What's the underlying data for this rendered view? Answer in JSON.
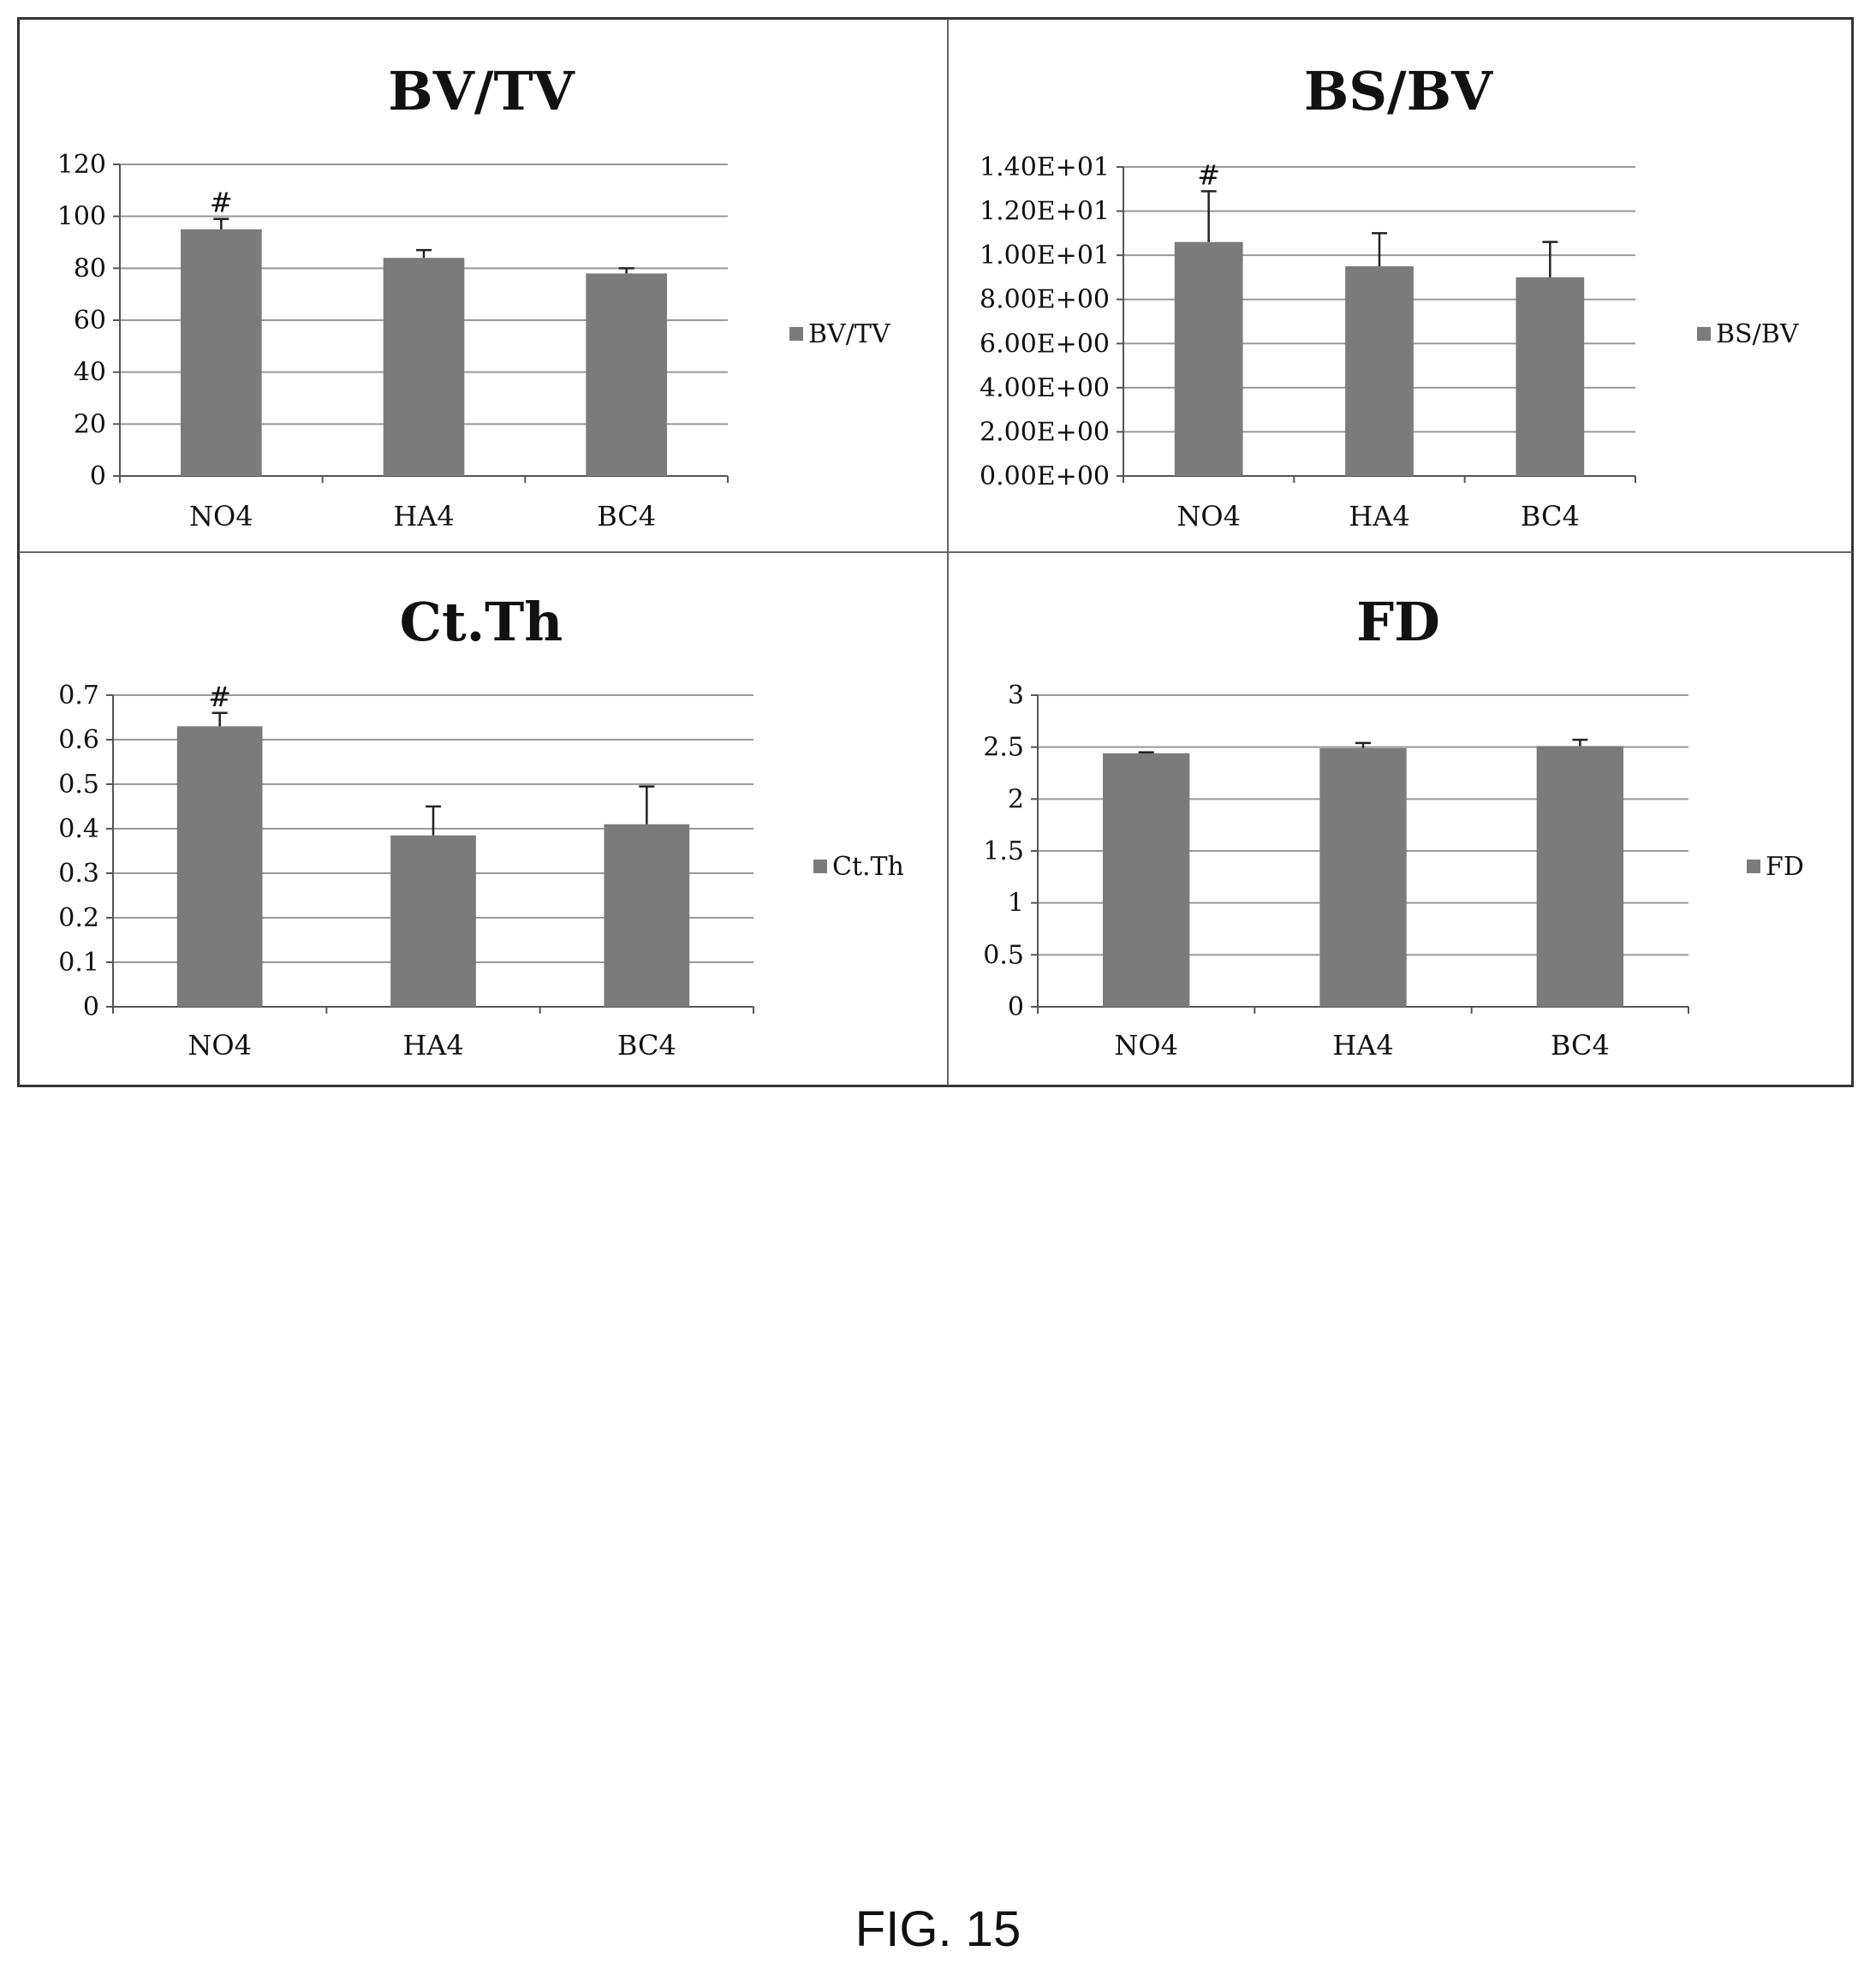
{
  "caption": "FIG. 15",
  "colors": {
    "bar": "#7b7b7b",
    "grid": "#999999",
    "axis": "#555555",
    "frame": "#333333"
  },
  "chart_data": [
    {
      "id": "bvtv",
      "type": "bar",
      "title": "BV/TV",
      "categories": [
        "NO4",
        "HA4",
        "BC4"
      ],
      "series": [
        {
          "name": "BV/TV",
          "values": [
            95,
            84,
            78
          ],
          "errors": [
            4,
            3,
            2
          ]
        }
      ],
      "ylim": [
        0,
        120
      ],
      "yticks": [
        0,
        20,
        40,
        60,
        80,
        100,
        120
      ],
      "ytick_labels": [
        "0",
        "20",
        "40",
        "60",
        "80",
        "100",
        "120"
      ],
      "annotations": [
        {
          "category": "NO4",
          "text": "#"
        }
      ],
      "grid": true,
      "legend": "right"
    },
    {
      "id": "bsbv",
      "type": "bar",
      "title": "BS/BV",
      "categories": [
        "NO4",
        "HA4",
        "BC4"
      ],
      "series": [
        {
          "name": "BS/BV",
          "values": [
            10.6,
            9.5,
            9.0
          ],
          "errors": [
            2.3,
            1.5,
            1.6
          ]
        }
      ],
      "ylim": [
        0,
        14
      ],
      "yticks": [
        0,
        2,
        4,
        6,
        8,
        10,
        12,
        14
      ],
      "ytick_labels": [
        "0.00E+00",
        "2.00E+00",
        "4.00E+00",
        "6.00E+00",
        "8.00E+00",
        "1.00E+01",
        "1.20E+01",
        "1.40E+01"
      ],
      "annotations": [
        {
          "category": "NO4",
          "text": "#"
        }
      ],
      "grid": true,
      "legend": "right"
    },
    {
      "id": "ctth",
      "type": "bar",
      "title": "Ct.Th",
      "categories": [
        "NO4",
        "HA4",
        "BC4"
      ],
      "series": [
        {
          "name": "Ct.Th",
          "values": [
            0.63,
            0.385,
            0.41
          ],
          "errors": [
            0.03,
            0.065,
            0.085
          ]
        }
      ],
      "ylim": [
        0,
        0.7
      ],
      "yticks": [
        0,
        0.1,
        0.2,
        0.3,
        0.4,
        0.5,
        0.6,
        0.7
      ],
      "ytick_labels": [
        "0",
        "0.1",
        "0.2",
        "0.3",
        "0.4",
        "0.5",
        "0.6",
        "0.7"
      ],
      "annotations": [
        {
          "category": "NO4",
          "text": "#"
        }
      ],
      "grid": true,
      "legend": "right"
    },
    {
      "id": "fd",
      "type": "bar",
      "title": "FD",
      "categories": [
        "NO4",
        "HA4",
        "BC4"
      ],
      "series": [
        {
          "name": "FD",
          "values": [
            2.44,
            2.49,
            2.51
          ],
          "errors": [
            0.01,
            0.05,
            0.06
          ]
        }
      ],
      "ylim": [
        0,
        3
      ],
      "yticks": [
        0,
        0.5,
        1,
        1.5,
        2,
        2.5,
        3
      ],
      "ytick_labels": [
        "0",
        "0.5",
        "1",
        "1.5",
        "2",
        "2.5",
        "3"
      ],
      "annotations": [],
      "grid": true,
      "legend": "right"
    }
  ]
}
